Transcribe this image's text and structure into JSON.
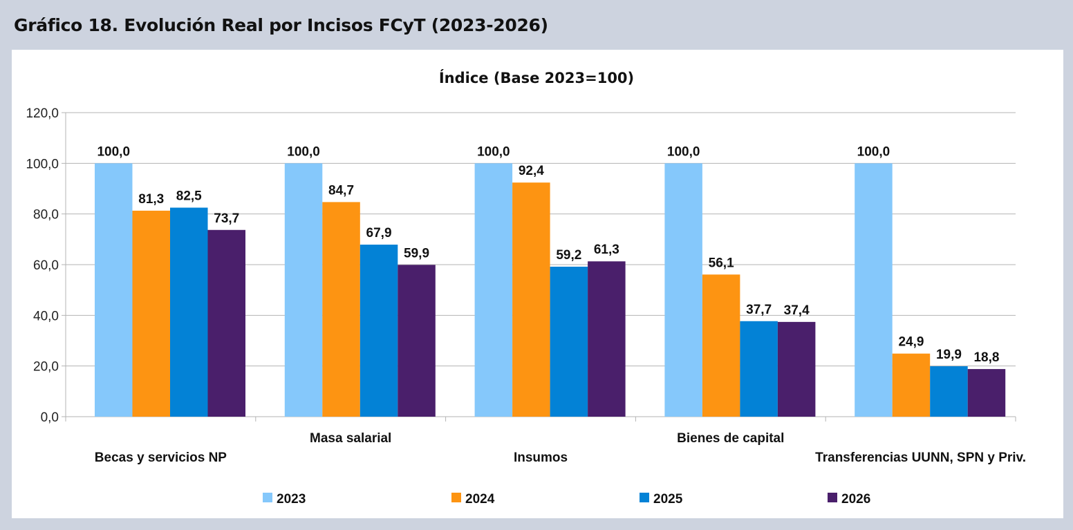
{
  "figure_title": "Gráfico 18. Evolución Real por Incisos FCyT (2023-2026)",
  "chart_data": {
    "type": "bar",
    "title": "Índice (Base 2023=100)",
    "categories": [
      "Becas y servicios NP",
      "Masa salarial",
      "Insumos",
      "Bienes de capital",
      "Transferencias UUNN, SPN y Priv."
    ],
    "series": [
      {
        "name": "2023",
        "color": "#85c8fb",
        "values": [
          100.0,
          100.0,
          100.0,
          100.0,
          100.0
        ],
        "labels": [
          "100,0",
          "100,0",
          "100,0",
          "100,0",
          "100,0"
        ]
      },
      {
        "name": "2024",
        "color": "#fd9412",
        "values": [
          81.3,
          84.7,
          92.4,
          56.1,
          24.9
        ],
        "labels": [
          "81,3",
          "84,7",
          "92,4",
          "56,1",
          "24,9"
        ]
      },
      {
        "name": "2025",
        "color": "#0382d6",
        "values": [
          82.5,
          67.9,
          59.2,
          37.7,
          19.9
        ],
        "labels": [
          "82,5",
          "67,9",
          "59,2",
          "37,7",
          "19,9"
        ]
      },
      {
        "name": "2026",
        "color": "#4a1f6b",
        "values": [
          73.7,
          59.9,
          61.3,
          37.4,
          18.8
        ],
        "labels": [
          "73,7",
          "59,9",
          "61,3",
          "37,4",
          "18,8"
        ]
      }
    ],
    "yticks": [
      "0,0",
      "20,0",
      "40,0",
      "60,0",
      "80,0",
      "100,0",
      "120,0"
    ],
    "ylim": [
      0,
      120
    ],
    "xlabel": "",
    "ylabel": "",
    "grid": true,
    "legend_position": "bottom",
    "gridline_color": "#b3b3b3"
  }
}
